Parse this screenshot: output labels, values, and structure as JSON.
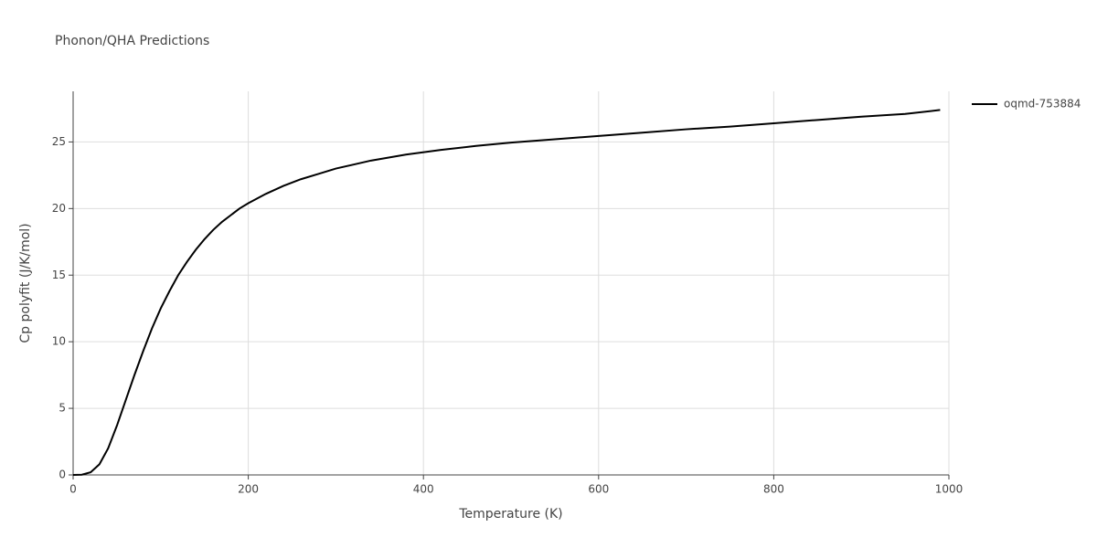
{
  "chart_data": {
    "type": "line",
    "title": "Phonon/QHA Predictions",
    "x_label": "Temperature (K)",
    "y_label": "Cp polyfit (J/K/mol)",
    "x": [
      0,
      10,
      20,
      30,
      40,
      50,
      60,
      70,
      80,
      90,
      100,
      110,
      120,
      130,
      140,
      150,
      160,
      170,
      180,
      190,
      200,
      220,
      240,
      260,
      280,
      300,
      340,
      380,
      420,
      460,
      500,
      550,
      600,
      650,
      700,
      750,
      800,
      850,
      900,
      950,
      990
    ],
    "series": [
      {
        "name": "oqmd-753884",
        "color": "#000000",
        "values": [
          0,
          0.02,
          0.2,
          0.8,
          2.0,
          3.7,
          5.6,
          7.5,
          9.3,
          11.0,
          12.5,
          13.8,
          15.0,
          16.0,
          16.9,
          17.7,
          18.4,
          19.0,
          19.5,
          20.0,
          20.4,
          21.1,
          21.7,
          22.2,
          22.6,
          23.0,
          23.6,
          24.05,
          24.4,
          24.7,
          24.95,
          25.2,
          25.45,
          25.7,
          25.95,
          26.15,
          26.4,
          26.65,
          26.9,
          27.1,
          27.4
        ]
      }
    ],
    "xlim": [
      0,
      1000
    ],
    "xticks": [
      0,
      200,
      400,
      600,
      800,
      1000
    ],
    "ylim": [
      0,
      28.8
    ],
    "yticks": [
      0,
      5,
      10,
      15,
      20,
      25
    ],
    "grid": true,
    "legend": "right"
  }
}
